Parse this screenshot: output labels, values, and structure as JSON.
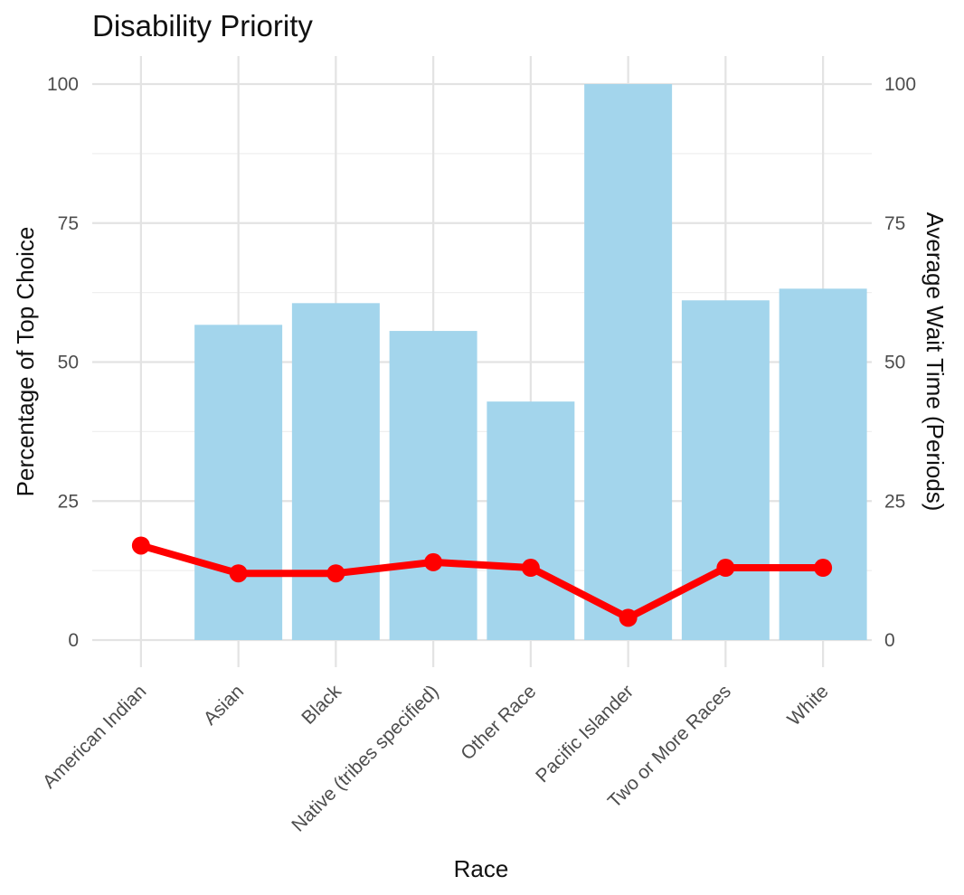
{
  "chart_data": {
    "type": "bar",
    "title": "Disability Priority",
    "xlabel": "Race",
    "ylabel": "Percentage of Top Choice",
    "y2label": "Average Wait Time (Periods)",
    "categories": [
      "American Indian",
      "Asian",
      "Black",
      "Native (tribes specified)",
      "Other Race",
      "Pacific Islander",
      "Two or More Races",
      "White"
    ],
    "ylim": [
      0,
      100
    ],
    "y2lim": [
      0,
      100
    ],
    "yticks": [
      "0",
      "25",
      "50",
      "75",
      "100"
    ],
    "y2ticks": [
      "0",
      "25",
      "50",
      "75",
      "100"
    ],
    "grid": true,
    "series": [
      {
        "type": "bar",
        "axis": "left",
        "color": "#a3d5ec",
        "values": [
          0,
          56.7,
          60.6,
          55.6,
          42.9,
          100,
          61.1,
          63.2
        ]
      },
      {
        "type": "line",
        "axis": "right",
        "color": "#ff0000",
        "values": [
          17,
          12,
          12,
          14,
          13,
          4,
          13,
          13
        ]
      }
    ]
  }
}
